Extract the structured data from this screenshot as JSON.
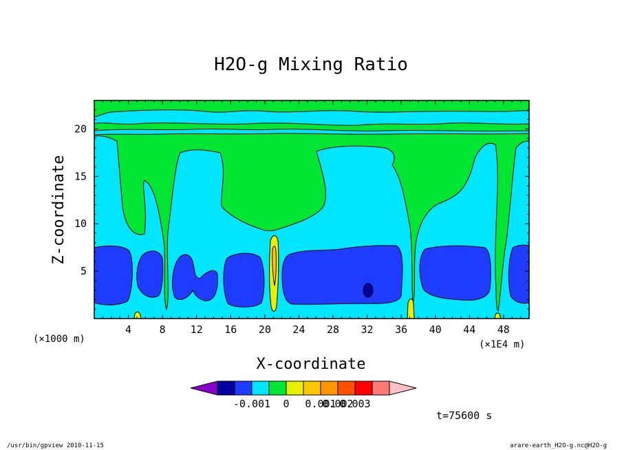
{
  "chart_data": {
    "type": "heatmap",
    "title": "H2O-g Mixing Ratio",
    "xlabel": "X-coordinate",
    "ylabel": "Z-coordinate",
    "x_unit_left": "(×1000 m)",
    "x_unit_right": "(×1E4 m)",
    "x_ticks": [
      "4",
      "8",
      "12",
      "16",
      "20",
      "24",
      "28",
      "32",
      "36",
      "40",
      "44",
      "48"
    ],
    "y_ticks": [
      "5",
      "10",
      "15",
      "20"
    ],
    "xlim": [
      0,
      51
    ],
    "ylim": [
      0,
      23
    ],
    "colorbar": {
      "labels": [
        "-0.001",
        "0",
        "0.001",
        "0.002",
        "0.003"
      ],
      "colors": [
        "#8b00c8",
        "#0000a0",
        "#1e3cff",
        "#00e6ff",
        "#00e632",
        "#e6f000",
        "#ffc800",
        "#ff9600",
        "#ff5000",
        "#ff0000",
        "#ff7878",
        "#ffc0c8"
      ]
    },
    "time_label": "t=75600 s",
    "colors": {
      "dark_blue": "#0000a0",
      "blue": "#1e3cff",
      "cyan": "#00e6ff",
      "green": "#00e632",
      "yellow": "#e6f000",
      "orange": "#ffc800"
    }
  },
  "footer": {
    "left": "/usr/bin/gpview   2010-11-15",
    "right": "arare-earth_H2O-g.nc@H2O-g"
  }
}
